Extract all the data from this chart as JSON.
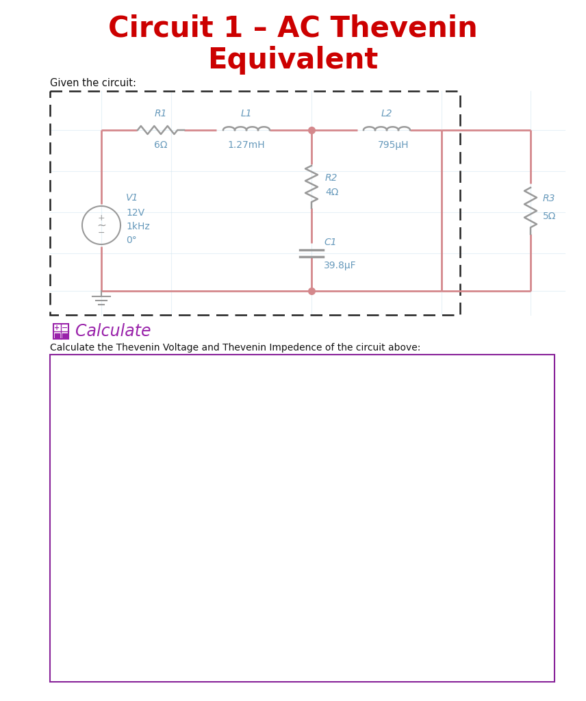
{
  "title_line1": "Circuit 1 – AC Thevenin",
  "title_line2": "Equivalent",
  "title_color": "#cc0000",
  "title_fontsize": 30,
  "title_fontweight": "bold",
  "given_text": "Given the circuit:",
  "circuit_wire_color": "#d4888c",
  "circuit_label_color": "#6699bb",
  "component_color": "#999999",
  "background_color": "#ffffff",
  "dashed_box_color": "#222222",
  "calculate_color": "#9922aa",
  "calc_box_border": "#882299",
  "calc_text": "Calculate the Thevenin Voltage and Thevenin Impedence of the circuit above:",
  "calc_text_color": "#111111",
  "r1_label": "R1",
  "r1_value": "6Ω",
  "l1_label": "L1",
  "l1_value": "1.27mH",
  "l2_label": "L2",
  "l2_value": "795μH",
  "r2_label": "R2",
  "r2_value": "4Ω",
  "r3_label": "R3",
  "r3_value": "5Ω",
  "c1_label": "C1",
  "c1_value": "39.8μF",
  "v1_label": "V1"
}
